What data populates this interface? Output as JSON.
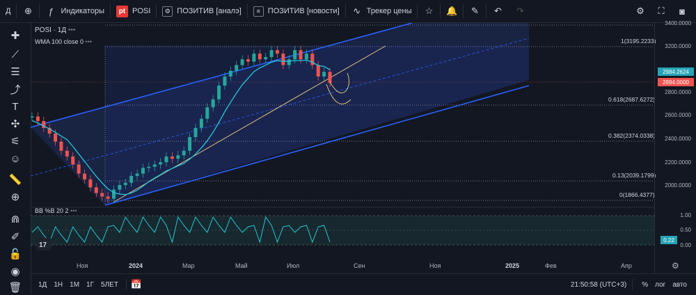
{
  "toolbar": {
    "symbol_short": "Д",
    "indicators": "Индикаторы",
    "symbol": "POSI",
    "brand_badge": "pt",
    "script1": "ПОЗИТИВ [аналэ]",
    "script2": "ПОЗИТИВ [новости]",
    "tracker": "Трекер цены"
  },
  "legend": {
    "main": "POSI · 1Д",
    "wma": "WMA 100 close 0",
    "bb": "BB %B 20 2"
  },
  "price_axis": {
    "labels": [
      "3400.0000",
      "3200.0000",
      "3000.0000",
      "2800.0000",
      "2600.0000",
      "2400.0000",
      "2200.0000",
      "2000.0000"
    ],
    "badge_wma": "2984.2624",
    "badge_price": "2894.0000"
  },
  "indicator_axis": {
    "labels": [
      "1.00",
      "0.50",
      "0.00"
    ],
    "badge": "0.22"
  },
  "fib_levels": [
    {
      "label": "1(3195.2233)",
      "value": 3195.2233
    },
    {
      "label": "0.618(2687.6272)",
      "value": 2687.6272
    },
    {
      "label": "0.382(2374.0338)",
      "value": 2374.0338
    },
    {
      "label": "0.13(2039.1799)",
      "value": 2039.1799
    },
    {
      "label": "0(1866.4377)",
      "value": 1866.4377
    }
  ],
  "time_axis": [
    "Ноя",
    "2024",
    "Мар",
    "Май",
    "Июл",
    "Сен",
    "Ноя",
    "2025",
    "Фев",
    "Апр"
  ],
  "bottom": {
    "timeframes": [
      "1Д",
      "1Н",
      "1М",
      "1Г",
      "5ЛЕТ"
    ],
    "clock": "21:50:58 (UTC+3)",
    "pct": "%",
    "log": "лог",
    "auto": "авто"
  },
  "colors": {
    "channel": "#2962ff",
    "wma": "#26c6da",
    "trend": "#e5c07b",
    "up": "#26a69a",
    "down": "#ef5350"
  },
  "chart_data": {
    "type": "candlestick",
    "series": [
      {
        "name": "POSI",
        "closes": [
          2600,
          2560,
          2500,
          2450,
          2380,
          2300,
          2250,
          2180,
          2100,
          2050,
          1980,
          1930,
          1900,
          1880,
          1960,
          2000,
          2020,
          2080,
          2100,
          2150,
          2160,
          2180,
          2200,
          2250,
          2230,
          2260,
          2300,
          2420,
          2500,
          2580,
          2680,
          2750,
          2870,
          2950,
          3000,
          3050,
          3100,
          3080,
          3150,
          3100,
          3120,
          3180,
          3150,
          3050,
          3100,
          3180,
          3100,
          3150,
          3050,
          2950,
          2990,
          2894
        ]
      },
      {
        "name": "WMA 100 close 0"
      },
      {
        "name": "BB %B 20 2"
      }
    ]
  }
}
